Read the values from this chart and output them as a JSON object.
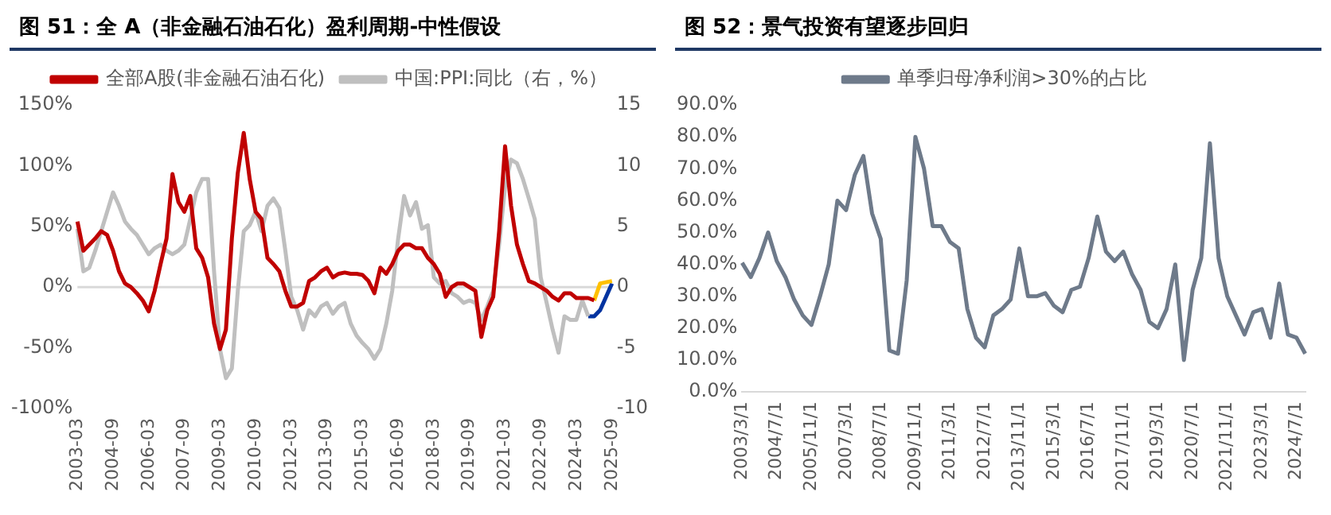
{
  "chart_data": [
    {
      "type": "line",
      "title": "图 51：全 A（非金融石油石化）盈利周期-中性假设",
      "legend": "top",
      "marker": "none",
      "line_style": "solid",
      "categories": [
        "2003-03",
        null,
        null,
        null,
        null,
        null,
        "2004-09",
        null,
        null,
        null,
        null,
        null,
        "2006-03",
        null,
        null,
        null,
        null,
        null,
        "2007-09",
        null,
        null,
        null,
        null,
        null,
        "2009-03",
        null,
        null,
        null,
        null,
        null,
        "2010-09",
        null,
        null,
        null,
        null,
        null,
        "2012-03",
        null,
        null,
        null,
        null,
        null,
        "2013-09",
        null,
        null,
        null,
        null,
        null,
        "2015-03",
        null,
        null,
        null,
        null,
        null,
        "2016-09",
        null,
        null,
        null,
        null,
        null,
        "2018-03",
        null,
        null,
        null,
        null,
        null,
        "2019-09",
        null,
        null,
        null,
        null,
        null,
        "2021-03",
        null,
        null,
        null,
        null,
        null,
        "2022-09",
        null,
        null,
        null,
        null,
        null,
        "2024-03",
        null,
        null,
        null,
        null,
        null,
        "2025-09"
      ],
      "ylim": [
        -100,
        150
      ],
      "yticks": [
        {
          "value": -100,
          "label": "-100%"
        },
        {
          "value": -50,
          "label": "-50%"
        },
        {
          "value": 0,
          "label": "0%"
        },
        {
          "value": 50,
          "label": "50%"
        },
        {
          "value": 100,
          "label": "100%"
        },
        {
          "value": 150,
          "label": "150%"
        }
      ],
      "y2lim": [
        -10,
        15
      ],
      "y2ticks": [
        -10,
        -5,
        0,
        5,
        10,
        15
      ],
      "ref_lines": [
        {
          "axis": "y",
          "value": 0,
          "color": "#d9d9d9"
        }
      ],
      "series": [
        {
          "name": "全部A股(非金融石油石化)",
          "color": "#c00000",
          "values": [
            54,
            30,
            35,
            40,
            46,
            43,
            30,
            13,
            3,
            0,
            -5,
            -11,
            -20,
            -3,
            19,
            40,
            93,
            70,
            62,
            75,
            32,
            24,
            8,
            -30,
            -51,
            -35,
            40,
            94,
            127,
            89,
            62,
            56,
            24,
            19,
            13,
            -3,
            -16,
            -16,
            -13,
            5,
            8,
            13,
            16,
            8,
            11,
            12,
            11,
            11,
            10,
            5,
            -5,
            16,
            11,
            19,
            30,
            35,
            35,
            32,
            32,
            24,
            19,
            11,
            -8,
            0,
            3,
            3,
            0,
            -3,
            -41,
            -19,
            -8,
            46,
            116,
            67,
            35,
            19,
            5,
            3,
            0,
            -3,
            -8,
            -11,
            -5,
            -5,
            -9,
            -9,
            -9,
            -11,
            null,
            null,
            null
          ]
        },
        {
          "name": "中国:PPI:同比（右，%）",
          "color": "#bfbfbf",
          "axis": "y2",
          "values": [
            4.8,
            1.3,
            1.6,
            3.0,
            4.6,
            6.2,
            7.8,
            6.7,
            5.4,
            4.8,
            4.3,
            3.5,
            2.7,
            3.2,
            3.5,
            3.0,
            2.7,
            3.0,
            3.5,
            5.6,
            7.8,
            8.9,
            8.9,
            1.3,
            -5.1,
            -7.5,
            -6.7,
            -0.3,
            4.6,
            5.1,
            6.2,
            4.6,
            6.7,
            7.3,
            6.5,
            3.0,
            -0.8,
            -1.9,
            -3.5,
            -1.9,
            -2.4,
            -1.6,
            -1.3,
            -2.2,
            -1.6,
            -1.3,
            -3.0,
            -4.0,
            -4.6,
            -5.1,
            -5.9,
            -5.1,
            -3.0,
            -0.3,
            4.0,
            7.5,
            5.9,
            7.0,
            4.8,
            5.1,
            0.8,
            0.3,
            0.5,
            -0.5,
            -0.8,
            -1.3,
            -1.1,
            -1.3,
            -2.7,
            -1.6,
            -0.3,
            3.5,
            8.3,
            10.5,
            10.2,
            8.9,
            7.3,
            5.6,
            0.8,
            -1.3,
            -3.5,
            -5.4,
            -2.4,
            -2.7,
            -2.7,
            -1.1,
            -2.4,
            null,
            null,
            null,
            null
          ]
        },
        {
          "color": "#ffc000",
          "values": [
            null,
            null,
            null,
            null,
            null,
            null,
            null,
            null,
            null,
            null,
            null,
            null,
            null,
            null,
            null,
            null,
            null,
            null,
            null,
            null,
            null,
            null,
            null,
            null,
            null,
            null,
            null,
            null,
            null,
            null,
            null,
            null,
            null,
            null,
            null,
            null,
            null,
            null,
            null,
            null,
            null,
            null,
            null,
            null,
            null,
            null,
            null,
            null,
            null,
            null,
            null,
            null,
            null,
            null,
            null,
            null,
            null,
            null,
            null,
            null,
            null,
            null,
            null,
            null,
            null,
            null,
            null,
            null,
            null,
            null,
            null,
            null,
            null,
            null,
            null,
            null,
            null,
            null,
            null,
            null,
            null,
            null,
            null,
            null,
            null,
            null,
            null,
            -11,
            3,
            4,
            5
          ]
        },
        {
          "color": "#0033a0",
          "axis": "y2",
          "values": [
            null,
            null,
            null,
            null,
            null,
            null,
            null,
            null,
            null,
            null,
            null,
            null,
            null,
            null,
            null,
            null,
            null,
            null,
            null,
            null,
            null,
            null,
            null,
            null,
            null,
            null,
            null,
            null,
            null,
            null,
            null,
            null,
            null,
            null,
            null,
            null,
            null,
            null,
            null,
            null,
            null,
            null,
            null,
            null,
            null,
            null,
            null,
            null,
            null,
            null,
            null,
            null,
            null,
            null,
            null,
            null,
            null,
            null,
            null,
            null,
            null,
            null,
            null,
            null,
            null,
            null,
            null,
            null,
            null,
            null,
            null,
            null,
            null,
            null,
            null,
            null,
            null,
            null,
            null,
            null,
            null,
            null,
            null,
            null,
            null,
            null,
            -2.4,
            -2.4,
            -1.9,
            -0.8,
            0.3
          ]
        }
      ]
    },
    {
      "type": "line",
      "title": "图 52：景气投资有望逐步回归",
      "legend": "top",
      "marker": "none",
      "line_style": "solid",
      "categories": [
        "2003/3/1",
        null,
        null,
        null,
        "2004/7/1",
        null,
        null,
        null,
        "2005/11/1",
        null,
        null,
        null,
        "2007/3/1",
        null,
        null,
        null,
        "2008/7/1",
        null,
        null,
        null,
        "2009/11/1",
        null,
        null,
        null,
        "2011/3/1",
        null,
        null,
        null,
        "2012/7/1",
        null,
        null,
        null,
        "2013/11/1",
        null,
        null,
        null,
        "2015/3/1",
        null,
        null,
        null,
        "2016/7/1",
        null,
        null,
        null,
        "2017/11/1",
        null,
        null,
        null,
        "2019/3/1",
        null,
        null,
        null,
        "2020/7/1",
        null,
        null,
        null,
        "2021/11/1",
        null,
        null,
        null,
        "2023/3/1",
        null,
        null,
        null,
        "2024/7/1",
        null
      ],
      "ylim": [
        0,
        90
      ],
      "yticks": [
        {
          "value": 0,
          "label": "0.0%"
        },
        {
          "value": 10,
          "label": "10.0%"
        },
        {
          "value": 20,
          "label": "20.0%"
        },
        {
          "value": 30,
          "label": "30.0%"
        },
        {
          "value": 40,
          "label": "40.0%"
        },
        {
          "value": 50,
          "label": "50.0%"
        },
        {
          "value": 60,
          "label": "60.0%"
        },
        {
          "value": 70,
          "label": "70.0%"
        },
        {
          "value": 80,
          "label": "80.0%"
        },
        {
          "value": 90,
          "label": "90.0%"
        }
      ],
      "series": [
        {
          "name": "单季归母净利润>30%的占比",
          "color": "#6e7a8a",
          "values": [
            40.5,
            36,
            42,
            50,
            41,
            36,
            29,
            24,
            21,
            30,
            40,
            60,
            57,
            68,
            74,
            56,
            48,
            13,
            12,
            35,
            80,
            70,
            52,
            52,
            47,
            45,
            26,
            17,
            14,
            24,
            26,
            29,
            45,
            30,
            30,
            31,
            27,
            25,
            32,
            33,
            42,
            55,
            44,
            41,
            44,
            37,
            32,
            22,
            20,
            26,
            40,
            10,
            32,
            42,
            78,
            42,
            30,
            24,
            18,
            25,
            26,
            17,
            34,
            18,
            17,
            12
          ]
        }
      ]
    }
  ]
}
